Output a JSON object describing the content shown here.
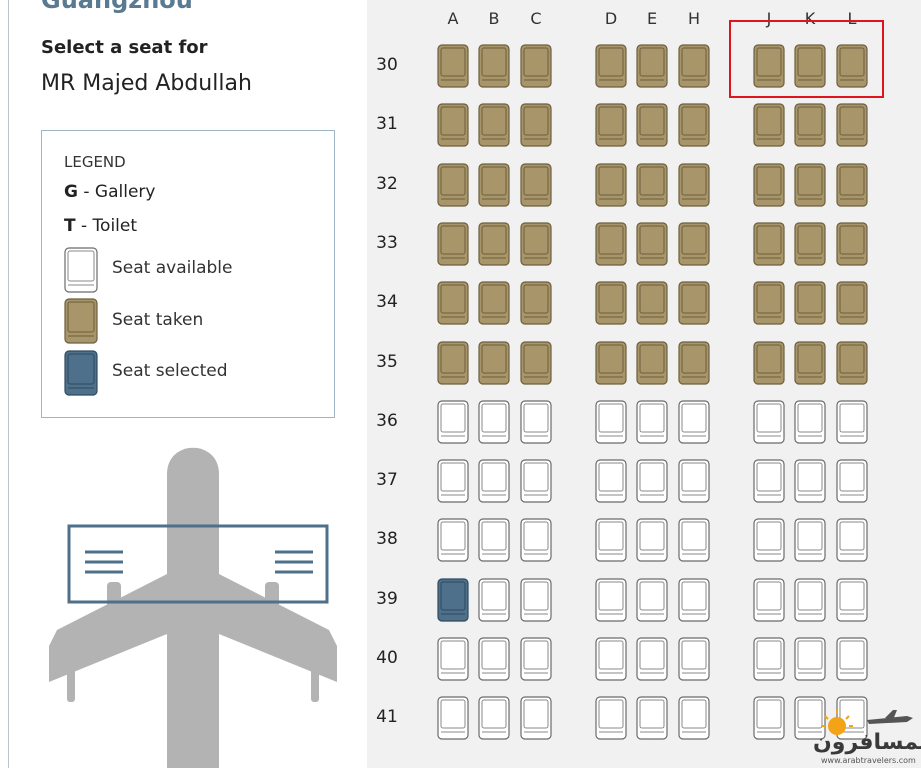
{
  "header": {
    "destination": "Guangzhou",
    "select_label": "Select a seat for",
    "passenger_name": "MR Majed Abdullah"
  },
  "legend": {
    "title": "LEGEND",
    "gallery_code": "G",
    "gallery_label": " - Gallery",
    "toilet_code": "T",
    "toilet_label": " - Toilet",
    "available_label": "Seat available",
    "taken_label": "Seat taken",
    "selected_label": "Seat selected"
  },
  "colors": {
    "taken": "#a8956a",
    "taken_dark": "#6d5f3e",
    "selected": "#4e708a",
    "selected_dark": "#2f4a5e",
    "available": "#ffffff",
    "available_border": "#6b6b6b",
    "highlight": "#e0141e"
  },
  "seat_map": {
    "columns": [
      "A",
      "B",
      "C",
      "D",
      "E",
      "H",
      "J",
      "K",
      "L"
    ],
    "rows": [
      {
        "number": "30",
        "seats": [
          "taken",
          "taken",
          "taken",
          "taken",
          "taken",
          "taken",
          "taken",
          "taken",
          "taken"
        ]
      },
      {
        "number": "31",
        "seats": [
          "taken",
          "taken",
          "taken",
          "taken",
          "taken",
          "taken",
          "taken",
          "taken",
          "taken"
        ]
      },
      {
        "number": "32",
        "seats": [
          "taken",
          "taken",
          "taken",
          "taken",
          "taken",
          "taken",
          "taken",
          "taken",
          "taken"
        ]
      },
      {
        "number": "33",
        "seats": [
          "taken",
          "taken",
          "taken",
          "taken",
          "taken",
          "taken",
          "taken",
          "taken",
          "taken"
        ]
      },
      {
        "number": "34",
        "seats": [
          "taken",
          "taken",
          "taken",
          "taken",
          "taken",
          "taken",
          "taken",
          "taken",
          "taken"
        ]
      },
      {
        "number": "35",
        "seats": [
          "taken",
          "taken",
          "taken",
          "taken",
          "taken",
          "taken",
          "taken",
          "taken",
          "taken"
        ]
      },
      {
        "number": "36",
        "seats": [
          "available",
          "available",
          "available",
          "available",
          "available",
          "available",
          "available",
          "available",
          "available"
        ]
      },
      {
        "number": "37",
        "seats": [
          "available",
          "available",
          "available",
          "available",
          "available",
          "available",
          "available",
          "available",
          "available"
        ]
      },
      {
        "number": "38",
        "seats": [
          "available",
          "available",
          "available",
          "available",
          "available",
          "available",
          "available",
          "available",
          "available"
        ]
      },
      {
        "number": "39",
        "seats": [
          "selected",
          "available",
          "available",
          "available",
          "available",
          "available",
          "available",
          "available",
          "available"
        ]
      },
      {
        "number": "40",
        "seats": [
          "available",
          "available",
          "available",
          "available",
          "available",
          "available",
          "available",
          "available",
          "available"
        ]
      },
      {
        "number": "41",
        "seats": [
          "available",
          "available",
          "available",
          "available",
          "available",
          "available",
          "available",
          "available",
          "available"
        ]
      }
    ]
  },
  "watermark": {
    "text": "المسافرون",
    "small_text": "www.arabtravelers.com"
  }
}
